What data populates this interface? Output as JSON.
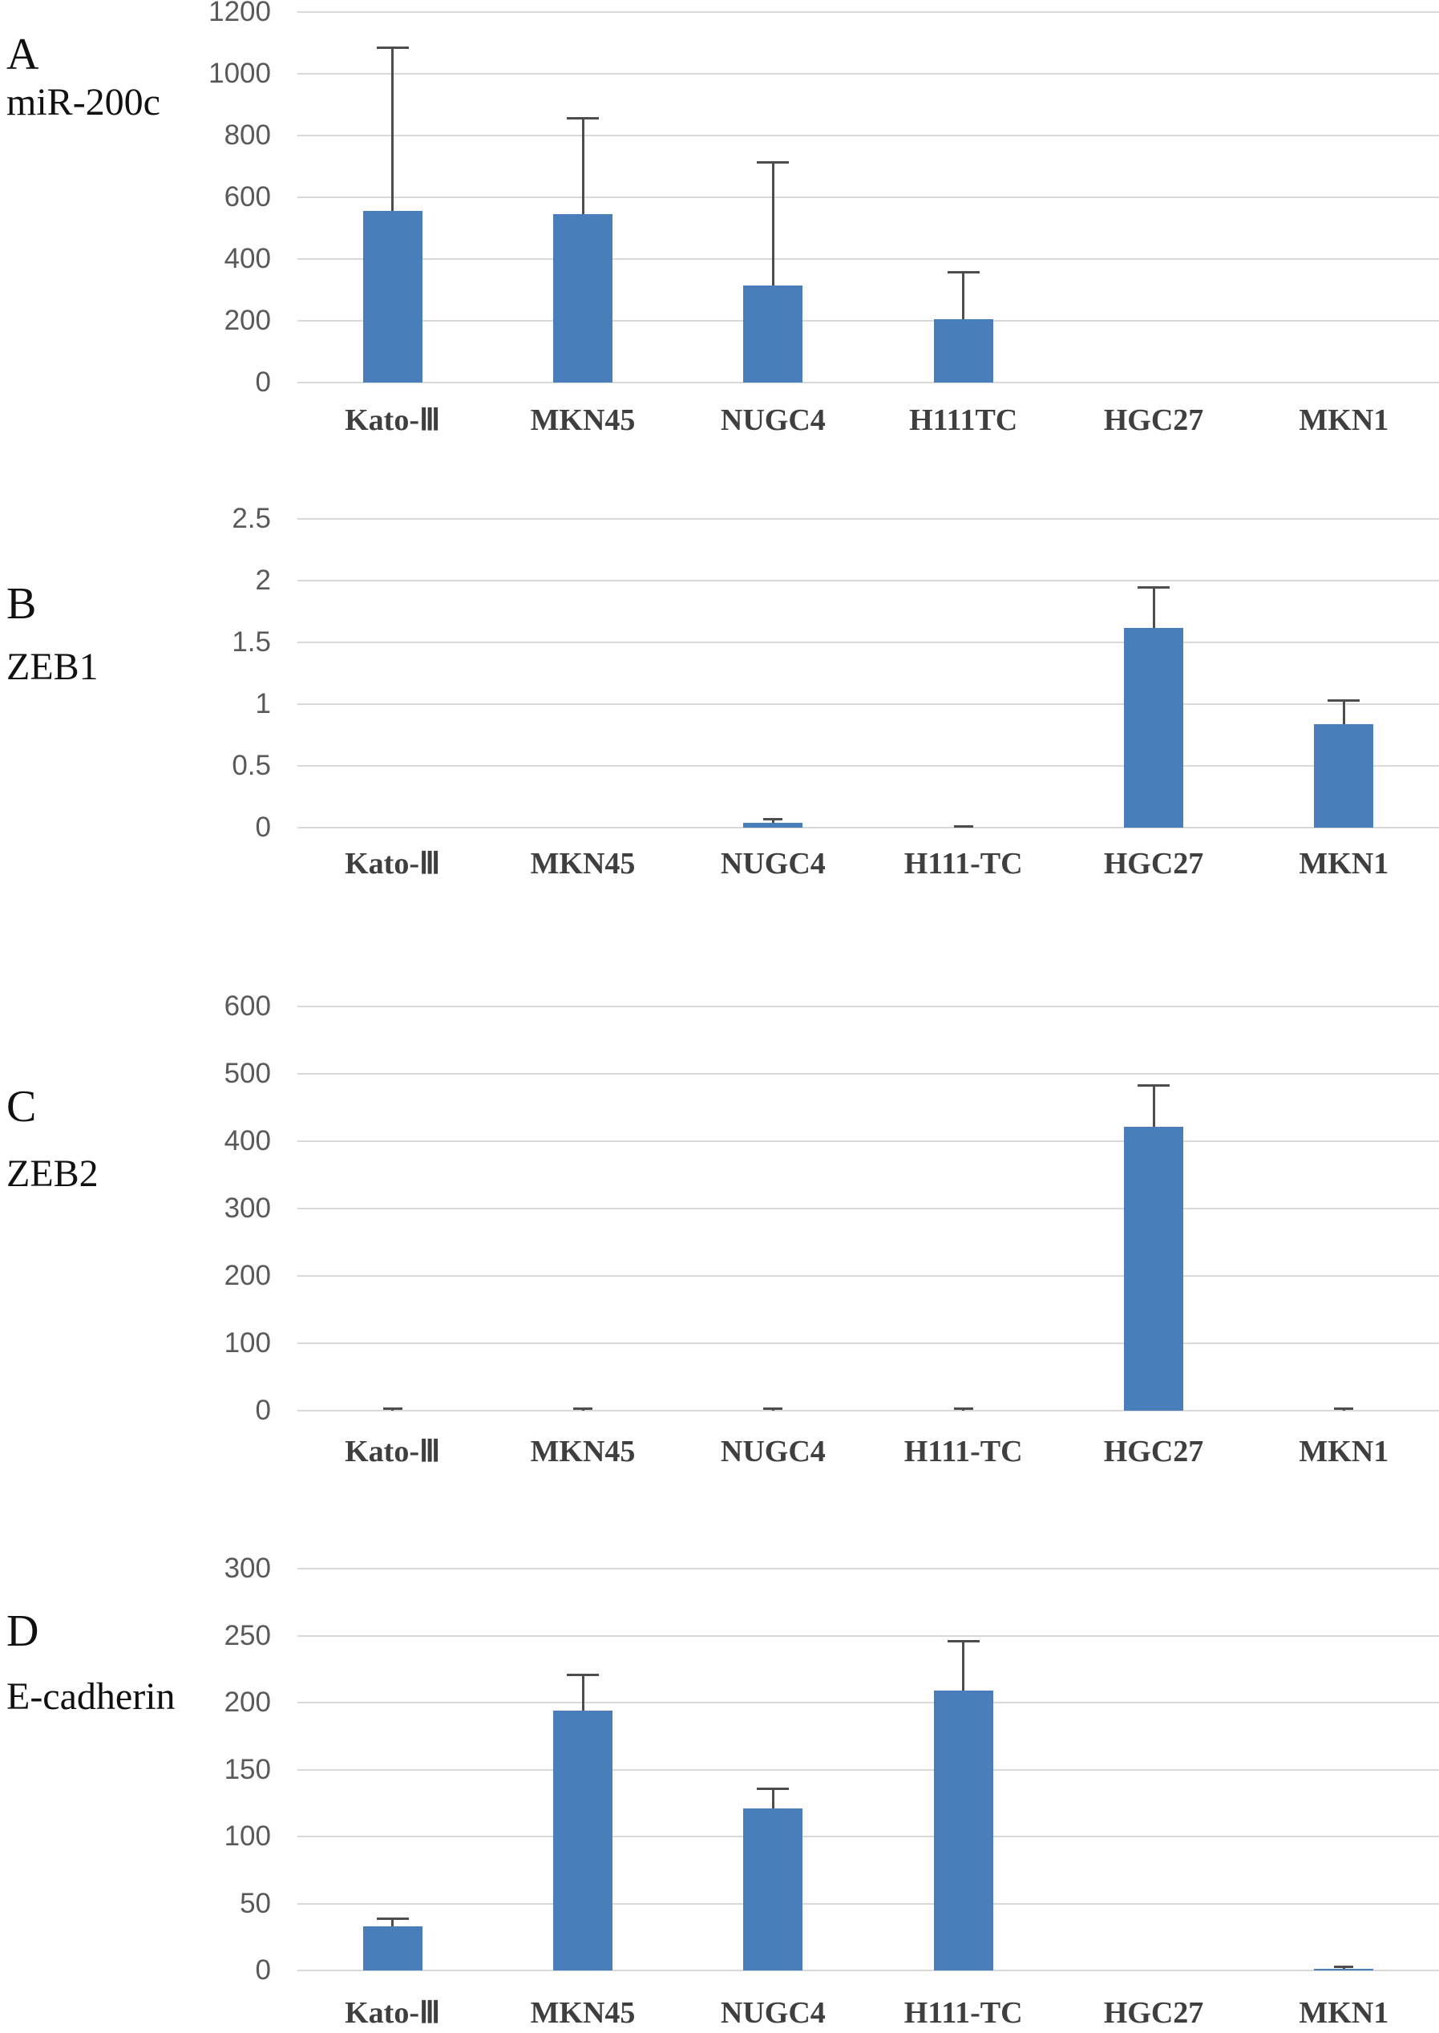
{
  "figure_colors": {
    "bar": "#4a7ebb",
    "gridline": "#d9d9d9",
    "error_bar": "#4d4d4d",
    "tick_text": "#595959",
    "category_text": "#3f3f3f"
  },
  "chart_data": [
    {
      "type": "bar",
      "letter": "A",
      "title": "miR-200c",
      "categories": [
        "Kato-Ⅲ",
        "MKN45",
        "NUGC4",
        "H111TC",
        "HGC27",
        "MKN1"
      ],
      "values": [
        556,
        546,
        314,
        205,
        0,
        0
      ],
      "errors_upper": [
        530,
        311,
        400,
        153,
        0,
        0
      ],
      "ylim": [
        0,
        1200
      ],
      "ytick_step": 200,
      "grid": "on",
      "legend": "none"
    },
    {
      "type": "bar",
      "letter": "B",
      "title": "ZEB1",
      "categories": [
        "Kato-Ⅲ",
        "MKN45",
        "NUGC4",
        "H111-TC",
        "HGC27",
        "MKN1"
      ],
      "values": [
        0,
        0,
        0.04,
        0,
        1.62,
        0.84
      ],
      "errors_upper": [
        0,
        0,
        0.03,
        0.015,
        0.33,
        0.19
      ],
      "ylim": [
        0,
        2.5
      ],
      "ytick_step": 0.5,
      "grid": "on",
      "legend": "none"
    },
    {
      "type": "bar",
      "letter": "C",
      "title": "ZEB2",
      "categories": [
        "Kato-Ⅲ",
        "MKN45",
        "NUGC4",
        "H111-TC",
        "HGC27",
        "MKN1"
      ],
      "values": [
        0,
        0,
        0,
        0,
        421,
        0
      ],
      "errors_upper": [
        3,
        3,
        4,
        4,
        62,
        3
      ],
      "ylim": [
        0,
        600
      ],
      "ytick_step": 100,
      "grid": "on",
      "legend": "none"
    },
    {
      "type": "bar",
      "letter": "D",
      "title": "E-cadherin",
      "categories": [
        "Kato-Ⅲ",
        "MKN45",
        "NUGC4",
        "H111-TC",
        "HGC27",
        "MKN1"
      ],
      "values": [
        33,
        194,
        121,
        209,
        0,
        1
      ],
      "errors_upper": [
        6,
        27,
        15,
        37,
        0,
        2
      ],
      "ylim": [
        0,
        300
      ],
      "ytick_step": 50,
      "grid": "on",
      "legend": "none"
    }
  ]
}
